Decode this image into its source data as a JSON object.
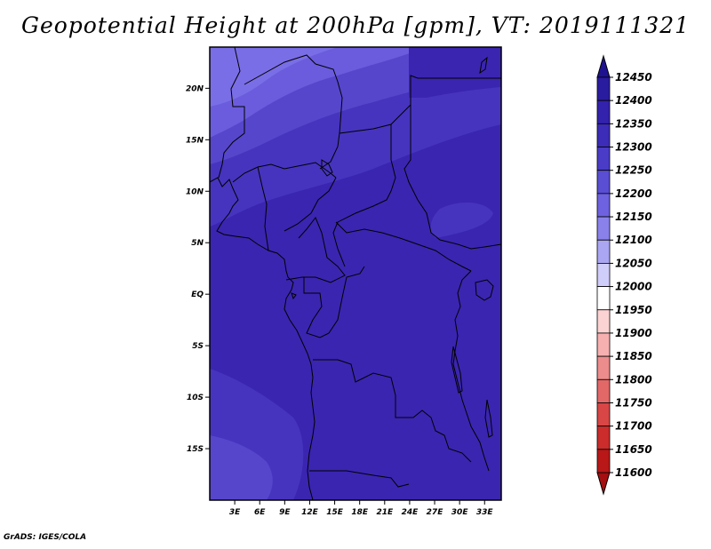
{
  "title": "Geopotential Height at 200hPa [gpm], VT: 2019111321",
  "credit": "GrADS: IGES/COLA",
  "map": {
    "lon_range": [
      0,
      35
    ],
    "lat_range": [
      -20,
      24
    ],
    "lat_ticks": [
      {
        "value": 20,
        "label": "20N"
      },
      {
        "value": 15,
        "label": "15N"
      },
      {
        "value": 10,
        "label": "10N"
      },
      {
        "value": 5,
        "label": "5N"
      },
      {
        "value": 0,
        "label": "EQ"
      },
      {
        "value": -5,
        "label": "5S"
      },
      {
        "value": -10,
        "label": "10S"
      },
      {
        "value": -15,
        "label": "15S"
      }
    ],
    "lon_ticks": [
      {
        "value": 3,
        "label": "3E"
      },
      {
        "value": 6,
        "label": "6E"
      },
      {
        "value": 9,
        "label": "9E"
      },
      {
        "value": 12,
        "label": "12E"
      },
      {
        "value": 15,
        "label": "15E"
      },
      {
        "value": 18,
        "label": "18E"
      },
      {
        "value": 21,
        "label": "21E"
      },
      {
        "value": 24,
        "label": "24E"
      },
      {
        "value": 27,
        "label": "27E"
      },
      {
        "value": 30,
        "label": "30E"
      },
      {
        "value": 33,
        "label": "33E"
      }
    ],
    "shading_colors": {
      "lightest": "#7a6ee6",
      "light": "#6a5cdc",
      "mid": "#5646cc",
      "darkmid": "#4634be",
      "dark": "#3a25b0",
      "darkest": "#3320a6"
    }
  },
  "colorbar": {
    "levels": [
      "12450",
      "12400",
      "12350",
      "12300",
      "12250",
      "12200",
      "12150",
      "12100",
      "12050",
      "12000",
      "11950",
      "11900",
      "11850",
      "11800",
      "11750",
      "11700",
      "11650",
      "11600"
    ],
    "colors": [
      "#2a1c9e",
      "#3322ac",
      "#3c2cb8",
      "#4a3cc6",
      "#5a4ed4",
      "#6e62e0",
      "#8a82ea",
      "#aaa6f2",
      "#cfcdf9",
      "#ffffff",
      "#fcd3d3",
      "#f6b0b0",
      "#ec8c8c",
      "#e26868",
      "#d84646",
      "#cc2c2c",
      "#b81818"
    ],
    "top_arrow_color": "#1e1290",
    "bottom_arrow_color": "#a50f0f"
  }
}
